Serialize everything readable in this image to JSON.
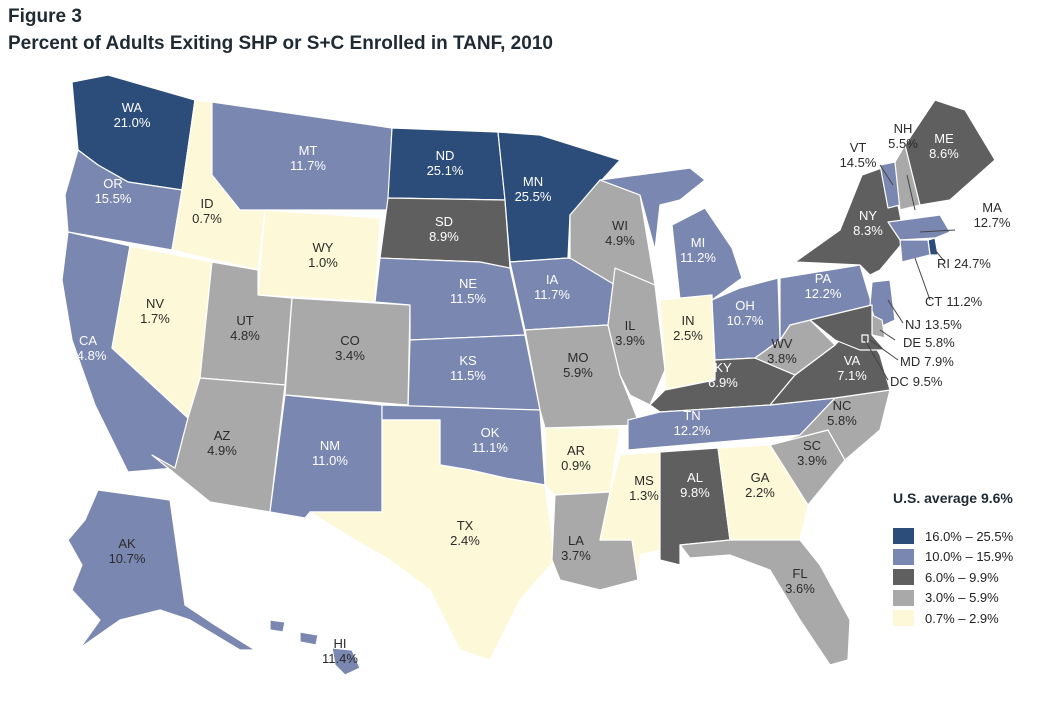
{
  "figure_label": "Figure 3",
  "title": "Percent of Adults Exiting SHP or S+C Enrolled in TANF, 2010",
  "legend": {
    "title": "U.S. average 9.6%",
    "bins": [
      {
        "label": "16.0% – 25.5%",
        "color": "#2c4d7a"
      },
      {
        "label": "10.0% – 15.9%",
        "color": "#7a87b0"
      },
      {
        "label": "6.0% – 9.9%",
        "color": "#5f5f5f"
      },
      {
        "label": "3.0% – 5.9%",
        "color": "#a9a9a9"
      },
      {
        "label": "0.7% – 2.9%",
        "color": "#fdf8d7"
      }
    ]
  },
  "chart_data": {
    "type": "choropleth",
    "title": "Percent of Adults Exiting SHP or S+C Enrolled in TANF, 2010",
    "unit": "%",
    "us_average": 9.6,
    "states": [
      {
        "abbr": "WA",
        "value": "21.0%",
        "bin": 0
      },
      {
        "abbr": "OR",
        "value": "15.5%",
        "bin": 1
      },
      {
        "abbr": "CA",
        "value": "14.8%",
        "bin": 1
      },
      {
        "abbr": "ID",
        "value": "0.7%",
        "bin": 4
      },
      {
        "abbr": "NV",
        "value": "1.7%",
        "bin": 4
      },
      {
        "abbr": "MT",
        "value": "11.7%",
        "bin": 1
      },
      {
        "abbr": "WY",
        "value": "1.0%",
        "bin": 4
      },
      {
        "abbr": "UT",
        "value": "4.8%",
        "bin": 3
      },
      {
        "abbr": "CO",
        "value": "3.4%",
        "bin": 3
      },
      {
        "abbr": "AZ",
        "value": "4.9%",
        "bin": 3
      },
      {
        "abbr": "NM",
        "value": "11.0%",
        "bin": 1
      },
      {
        "abbr": "ND",
        "value": "25.1%",
        "bin": 0
      },
      {
        "abbr": "SD",
        "value": "8.9%",
        "bin": 2
      },
      {
        "abbr": "NE",
        "value": "11.5%",
        "bin": 1
      },
      {
        "abbr": "KS",
        "value": "11.5%",
        "bin": 1
      },
      {
        "abbr": "OK",
        "value": "11.1%",
        "bin": 1
      },
      {
        "abbr": "TX",
        "value": "2.4%",
        "bin": 4
      },
      {
        "abbr": "MN",
        "value": "25.5%",
        "bin": 0
      },
      {
        "abbr": "IA",
        "value": "11.7%",
        "bin": 1
      },
      {
        "abbr": "MO",
        "value": "5.9%",
        "bin": 3
      },
      {
        "abbr": "AR",
        "value": "0.9%",
        "bin": 4
      },
      {
        "abbr": "LA",
        "value": "3.7%",
        "bin": 3
      },
      {
        "abbr": "WI",
        "value": "4.9%",
        "bin": 3
      },
      {
        "abbr": "IL",
        "value": "3.9%",
        "bin": 3
      },
      {
        "abbr": "MI",
        "value": "11.2%",
        "bin": 1
      },
      {
        "abbr": "IN",
        "value": "2.5%",
        "bin": 4
      },
      {
        "abbr": "OH",
        "value": "10.7%",
        "bin": 1
      },
      {
        "abbr": "KY",
        "value": "6.9%",
        "bin": 2
      },
      {
        "abbr": "TN",
        "value": "12.2%",
        "bin": 1
      },
      {
        "abbr": "MS",
        "value": "1.3%",
        "bin": 4
      },
      {
        "abbr": "AL",
        "value": "9.8%",
        "bin": 2
      },
      {
        "abbr": "GA",
        "value": "2.2%",
        "bin": 4
      },
      {
        "abbr": "FL",
        "value": "3.6%",
        "bin": 3
      },
      {
        "abbr": "SC",
        "value": "3.9%",
        "bin": 3
      },
      {
        "abbr": "NC",
        "value": "5.8%",
        "bin": 3
      },
      {
        "abbr": "VA",
        "value": "7.1%",
        "bin": 2
      },
      {
        "abbr": "WV",
        "value": "3.8%",
        "bin": 3
      },
      {
        "abbr": "PA",
        "value": "12.2%",
        "bin": 1
      },
      {
        "abbr": "NY",
        "value": "8.3%",
        "bin": 2
      },
      {
        "abbr": "VT",
        "value": "14.5%",
        "bin": 1
      },
      {
        "abbr": "NH",
        "value": "5.5%",
        "bin": 3
      },
      {
        "abbr": "ME",
        "value": "8.6%",
        "bin": 2
      },
      {
        "abbr": "MA",
        "value": "12.7%",
        "bin": 1
      },
      {
        "abbr": "RI",
        "value": "24.7%",
        "bin": 0
      },
      {
        "abbr": "CT",
        "value": "11.2%",
        "bin": 1
      },
      {
        "abbr": "NJ",
        "value": "13.5%",
        "bin": 1
      },
      {
        "abbr": "DE",
        "value": "5.8%",
        "bin": 3
      },
      {
        "abbr": "MD",
        "value": "7.9%",
        "bin": 2
      },
      {
        "abbr": "DC",
        "value": "9.5%",
        "bin": 2
      },
      {
        "abbr": "AK",
        "value": "10.7%",
        "bin": 1
      },
      {
        "abbr": "HI",
        "value": "11.4%",
        "bin": 1
      }
    ]
  }
}
